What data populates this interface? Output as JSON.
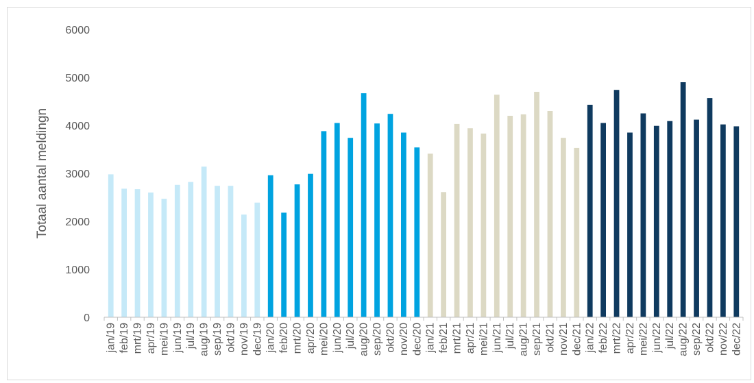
{
  "chart_data": {
    "type": "bar",
    "title": "",
    "xlabel": "",
    "ylabel": "Totaal aantal meldingn",
    "ylim": [
      0,
      6000
    ],
    "yticks": [
      "0",
      "1000",
      "2000",
      "3000",
      "4000",
      "5000",
      "6000"
    ],
    "grid": false,
    "legend": "none",
    "categories": [
      "jan/19",
      "feb/19",
      "mrt/19",
      "apr/19",
      "mei/19",
      "jun/19",
      "jul/19",
      "aug/19",
      "sep/19",
      "okt/19",
      "nov/19",
      "dec/19",
      "jan/20",
      "feb/20",
      "mrt/20",
      "apr/20",
      "mei/20",
      "jun/20",
      "jul/20",
      "aug/20",
      "sep/20",
      "okt/20",
      "nov/20",
      "dec/20",
      "jan/21",
      "feb/21",
      "mrt/21",
      "apr/21",
      "mei/21",
      "jun/21",
      "jul/21",
      "aug/21",
      "sep/21",
      "okt/21",
      "nov/21",
      "dec/21",
      "jan/22",
      "feb/22",
      "mrt/22",
      "apr/22",
      "mei/22",
      "jun/22",
      "jul/22",
      "aug/22",
      "sep/22",
      "okt/22",
      "nov/22",
      "dec/22"
    ],
    "values": [
      2980,
      2680,
      2670,
      2600,
      2470,
      2760,
      2820,
      3140,
      2740,
      2740,
      2140,
      2390,
      2960,
      2180,
      2770,
      2990,
      3880,
      4050,
      3740,
      4670,
      4040,
      4240,
      3850,
      3540,
      3410,
      2610,
      4030,
      3940,
      3830,
      4640,
      4200,
      4230,
      4700,
      4300,
      3740,
      3530,
      4430,
      4050,
      4740,
      3850,
      4250,
      3990,
      4090,
      4900,
      4120,
      4570,
      4020,
      3980
    ],
    "colors": [
      "#c5e9f8",
      "#00a3e0",
      "#dcd9c4",
      "#0f3a5f"
    ]
  }
}
